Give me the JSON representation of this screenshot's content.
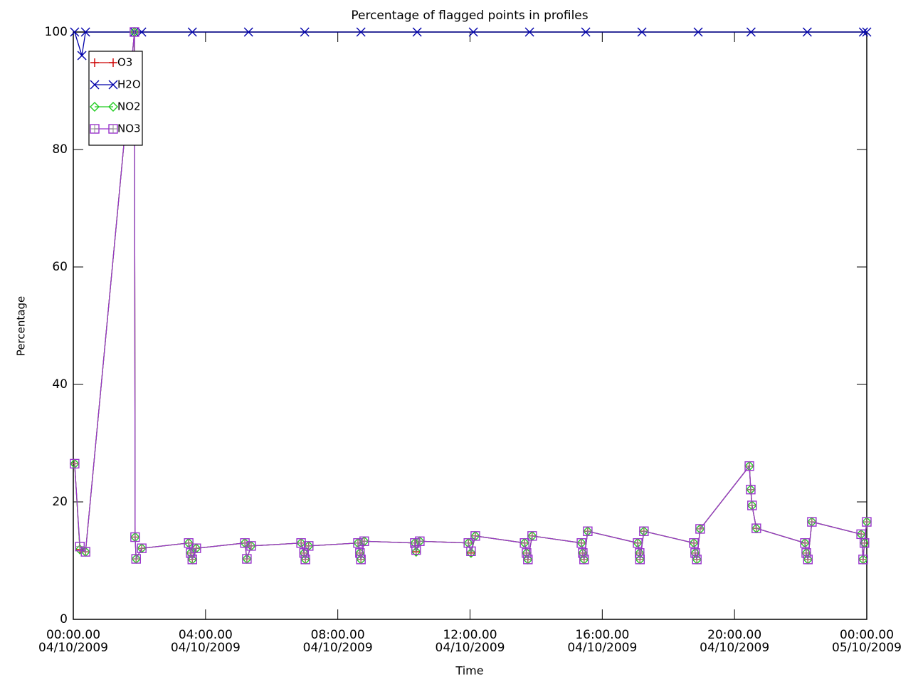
{
  "chart_data": {
    "type": "line",
    "title": "Percentage of flagged points in profiles",
    "xlabel": "Time",
    "ylabel": "Percentage",
    "xlim": [
      0,
      24
    ],
    "ylim": [
      0,
      100
    ],
    "xticks": [
      {
        "value": 0,
        "label": [
          "00:00.00",
          "04/10/2009"
        ]
      },
      {
        "value": 4,
        "label": [
          "04:00.00",
          "04/10/2009"
        ]
      },
      {
        "value": 8,
        "label": [
          "08:00.00",
          "04/10/2009"
        ]
      },
      {
        "value": 12,
        "label": [
          "12:00.00",
          "04/10/2009"
        ]
      },
      {
        "value": 16,
        "label": [
          "16:00.00",
          "04/10/2009"
        ]
      },
      {
        "value": 20,
        "label": [
          "20:00.00",
          "04/10/2009"
        ]
      },
      {
        "value": 24,
        "label": [
          "00:00.00",
          "05/10/2009"
        ]
      }
    ],
    "yticks": [
      0,
      20,
      40,
      60,
      80,
      100
    ],
    "legend": "upper left",
    "series": [
      {
        "name": "O3",
        "color": "#cc0000",
        "marker": "plus",
        "x": [
          0.04,
          0.2,
          0.37,
          1.85,
          1.87,
          1.9,
          2.07,
          3.49,
          3.55,
          3.6,
          3.72,
          5.19,
          5.25,
          5.38,
          6.89,
          6.98,
          7.02,
          7.12,
          8.61,
          8.67,
          8.7,
          8.8,
          10.33,
          10.37,
          10.48,
          11.95,
          12.03,
          12.16,
          13.65,
          13.71,
          13.75,
          13.88,
          15.37,
          15.41,
          15.45,
          15.56,
          17.07,
          17.13,
          17.14,
          17.26,
          18.77,
          18.81,
          18.86,
          18.96,
          20.45,
          20.49,
          20.53,
          20.66,
          22.13,
          22.17,
          22.22,
          22.34,
          23.83,
          23.89,
          23.93,
          24.0
        ],
        "values": [
          26.5,
          11.9,
          11.5,
          100,
          14,
          10.3,
          12.1,
          13,
          11.3,
          10.2,
          12.1,
          13,
          10.3,
          12.5,
          13,
          11.3,
          10.2,
          12.5,
          13,
          11.3,
          10.2,
          13.3,
          13,
          11.5,
          13.3,
          13,
          11.3,
          14.2,
          13,
          11.3,
          10.2,
          14.2,
          13,
          11.3,
          10.2,
          15,
          13,
          11.3,
          10.2,
          15,
          13,
          11.3,
          10.2,
          15.4,
          26.1,
          22.1,
          19.4,
          15.5,
          13,
          11.3,
          10.2,
          16.6,
          14.5,
          10.2,
          13,
          16.6
        ]
      },
      {
        "name": "H2O",
        "color": "#0000aa",
        "marker": "x",
        "x": [
          0.04,
          0.26,
          0.37,
          1.85,
          2.07,
          3.6,
          5.3,
          7.0,
          8.7,
          10.4,
          12.1,
          13.8,
          15.5,
          17.2,
          18.9,
          20.5,
          22.2,
          23.9,
          24.0
        ],
        "values": [
          100,
          96,
          100,
          100,
          100,
          100,
          100,
          100,
          100,
          100,
          100,
          100,
          100,
          100,
          100,
          100,
          100,
          100,
          100
        ]
      },
      {
        "name": "NO2",
        "color": "#22cc22",
        "marker": "diamond",
        "x": [
          0.04,
          0.2,
          0.37,
          1.85,
          1.87,
          1.9,
          2.07,
          3.49,
          3.55,
          3.6,
          3.72,
          5.19,
          5.25,
          5.38,
          6.89,
          6.98,
          7.02,
          7.12,
          8.61,
          8.67,
          8.7,
          8.8,
          10.33,
          10.37,
          10.48,
          11.95,
          12.03,
          12.16,
          13.65,
          13.71,
          13.75,
          13.88,
          15.37,
          15.41,
          15.45,
          15.56,
          17.07,
          17.13,
          17.14,
          17.26,
          18.77,
          18.81,
          18.86,
          18.96,
          20.45,
          20.49,
          20.53,
          20.66,
          22.13,
          22.17,
          22.22,
          22.34,
          23.83,
          23.89,
          23.93,
          24.0
        ],
        "values": [
          26.5,
          11.9,
          11.5,
          100,
          14,
          10.3,
          12.1,
          13,
          11.3,
          10.2,
          12.1,
          13,
          10.3,
          12.5,
          13,
          11.3,
          10.2,
          12.5,
          13,
          11.3,
          10.2,
          13.3,
          13,
          11.5,
          13.3,
          13,
          11.3,
          14.2,
          13,
          11.3,
          10.2,
          14.2,
          13,
          11.3,
          10.2,
          15,
          13,
          11.3,
          10.2,
          15,
          13,
          11.3,
          10.2,
          15.4,
          26.1,
          22.1,
          19.4,
          15.5,
          13,
          11.3,
          10.2,
          16.6,
          14.5,
          10.2,
          13,
          16.6
        ]
      },
      {
        "name": "NO3",
        "color": "#9933cc",
        "marker": "square",
        "x": [
          0.04,
          0.2,
          0.37,
          1.85,
          1.87,
          1.9,
          2.07,
          3.49,
          3.55,
          3.6,
          3.72,
          5.19,
          5.25,
          5.38,
          6.89,
          6.98,
          7.02,
          7.12,
          8.61,
          8.67,
          8.7,
          8.8,
          10.33,
          10.37,
          10.48,
          11.95,
          12.03,
          12.16,
          13.65,
          13.71,
          13.75,
          13.88,
          15.37,
          15.41,
          15.45,
          15.56,
          17.07,
          17.13,
          17.14,
          17.26,
          18.77,
          18.81,
          18.86,
          18.96,
          20.45,
          20.49,
          20.53,
          20.66,
          22.13,
          22.17,
          22.22,
          22.34,
          23.83,
          23.89,
          23.93,
          24.0
        ],
        "values": [
          26.5,
          12.4,
          11.5,
          100,
          14,
          10.3,
          12.1,
          13,
          11.3,
          10.2,
          12.1,
          13,
          10.3,
          12.5,
          13,
          11.3,
          10.2,
          12.5,
          13,
          11.3,
          10.2,
          13.3,
          13,
          11.8,
          13.3,
          13,
          11.6,
          14.2,
          13,
          11.3,
          10.2,
          14.2,
          13,
          11.3,
          10.2,
          15,
          13,
          11.3,
          10.2,
          15,
          13,
          11.3,
          10.2,
          15.4,
          26.1,
          22.1,
          19.4,
          15.5,
          13,
          11.3,
          10.2,
          16.6,
          14.5,
          10.2,
          13,
          16.6
        ]
      }
    ]
  }
}
